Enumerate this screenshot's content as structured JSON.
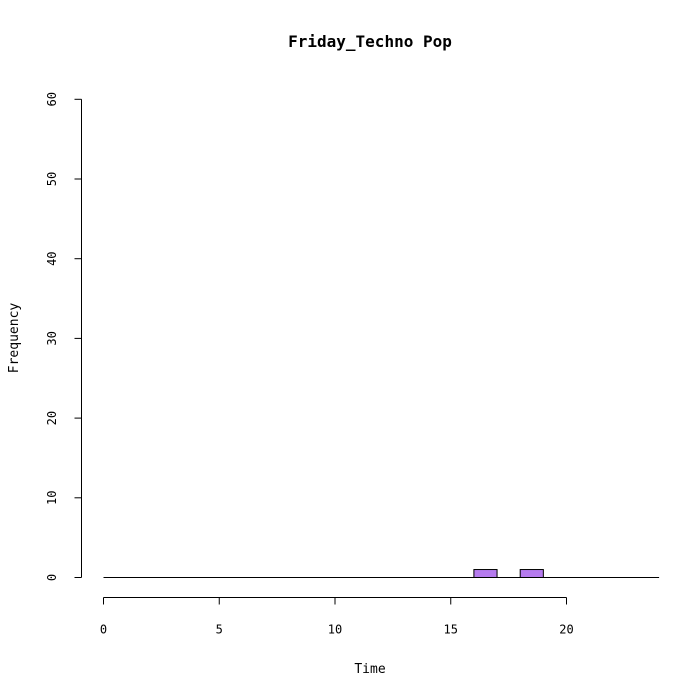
{
  "chart_data": {
    "type": "bar",
    "title": "Friday_Techno Pop",
    "xlabel": "Time",
    "ylabel": "Frequency",
    "xlim": [
      0,
      24
    ],
    "ylim": [
      0,
      60
    ],
    "x_ticks": [
      "0",
      "5",
      "10",
      "15",
      "20"
    ],
    "y_ticks": [
      "0",
      "10",
      "20",
      "30",
      "40",
      "50",
      "60"
    ],
    "bins": [
      {
        "start": 0,
        "end": 1,
        "value": 0
      },
      {
        "start": 1,
        "end": 2,
        "value": 0
      },
      {
        "start": 2,
        "end": 3,
        "value": 0
      },
      {
        "start": 3,
        "end": 4,
        "value": 0
      },
      {
        "start": 4,
        "end": 5,
        "value": 0
      },
      {
        "start": 5,
        "end": 6,
        "value": 0
      },
      {
        "start": 6,
        "end": 7,
        "value": 0
      },
      {
        "start": 7,
        "end": 8,
        "value": 0
      },
      {
        "start": 8,
        "end": 9,
        "value": 0
      },
      {
        "start": 9,
        "end": 10,
        "value": 0
      },
      {
        "start": 10,
        "end": 11,
        "value": 0
      },
      {
        "start": 11,
        "end": 12,
        "value": 0
      },
      {
        "start": 12,
        "end": 13,
        "value": 0
      },
      {
        "start": 13,
        "end": 14,
        "value": 0
      },
      {
        "start": 14,
        "end": 15,
        "value": 0
      },
      {
        "start": 15,
        "end": 16,
        "value": 0
      },
      {
        "start": 16,
        "end": 17,
        "value": 1
      },
      {
        "start": 17,
        "end": 18,
        "value": 0
      },
      {
        "start": 18,
        "end": 19,
        "value": 1
      },
      {
        "start": 19,
        "end": 20,
        "value": 0
      },
      {
        "start": 20,
        "end": 21,
        "value": 0
      },
      {
        "start": 21,
        "end": 22,
        "value": 0
      },
      {
        "start": 22,
        "end": 23,
        "value": 0
      },
      {
        "start": 23,
        "end": 24,
        "value": 0
      }
    ],
    "bar_color": "#b57bee",
    "grid": false
  }
}
